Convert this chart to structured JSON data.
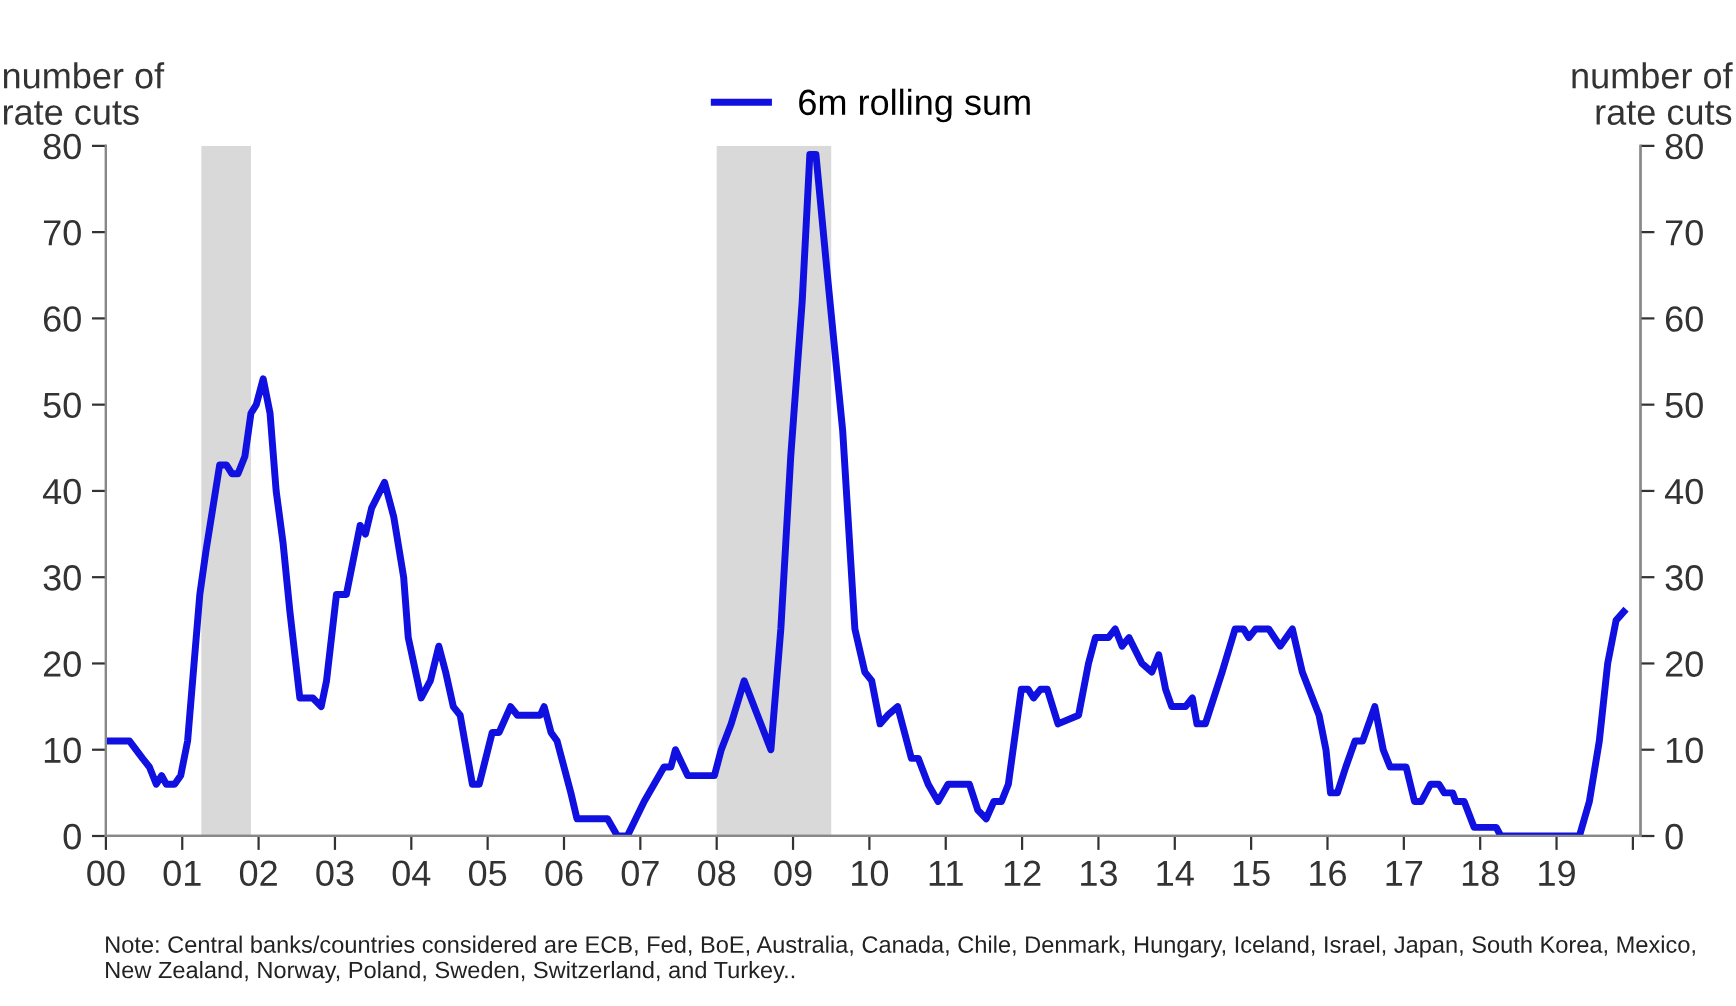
{
  "chart_data": {
    "type": "line",
    "ylabel": "number of\nrate cuts",
    "y2label": "number of\nrate cuts",
    "x": [
      2000.0,
      2000.31,
      2000.48,
      2000.57,
      2000.66,
      2000.73,
      2000.79,
      2000.9,
      2000.98,
      2001.07,
      2001.23,
      2001.31,
      2001.49,
      2001.58,
      2001.65,
      2001.73,
      2001.82,
      2001.9,
      2001.97,
      2002.06,
      2002.15,
      2002.23,
      2002.32,
      2002.41,
      2002.54,
      2002.71,
      2002.82,
      2002.89,
      2003.02,
      2003.15,
      2003.33,
      2003.4,
      2003.48,
      2003.65,
      2003.77,
      2003.9,
      2003.96,
      2004.13,
      2004.25,
      2004.36,
      2004.45,
      2004.55,
      2004.64,
      2004.8,
      2004.89,
      2005.06,
      2005.15,
      2005.3,
      2005.39,
      2005.69,
      2005.74,
      2005.83,
      2005.91,
      2006.09,
      2006.17,
      2006.57,
      2006.7,
      2006.83,
      2007.05,
      2007.31,
      2007.4,
      2007.46,
      2007.62,
      2007.97,
      2008.06,
      2008.19,
      2008.36,
      2008.49,
      2008.71,
      2008.84,
      2008.97,
      2009.12,
      2009.22,
      2009.3,
      2009.45,
      2009.65,
      2009.81,
      2009.94,
      2010.03,
      2010.14,
      2010.24,
      2010.37,
      2010.55,
      2010.64,
      2010.77,
      2010.9,
      2011.03,
      2011.31,
      2011.42,
      2011.53,
      2011.63,
      2011.73,
      2011.82,
      2011.99,
      2012.08,
      2012.15,
      2012.24,
      2012.33,
      2012.47,
      2012.74,
      2012.87,
      2012.96,
      2013.13,
      2013.22,
      2013.31,
      2013.4,
      2013.57,
      2013.7,
      2013.79,
      2013.88,
      2013.96,
      2014.14,
      2014.23,
      2014.29,
      2014.4,
      2014.62,
      2014.79,
      2014.9,
      2014.97,
      2015.06,
      2015.23,
      2015.38,
      2015.54,
      2015.67,
      2015.89,
      2015.98,
      2016.04,
      2016.13,
      2016.24,
      2016.36,
      2016.46,
      2016.62,
      2016.73,
      2016.82,
      2017.03,
      2017.14,
      2017.23,
      2017.35,
      2017.46,
      2017.53,
      2017.64,
      2017.68,
      2017.79,
      2017.92,
      2018.21,
      2018.27,
      2019.3,
      2019.43,
      2019.56,
      2019.67,
      2019.78,
      2019.88
    ],
    "series": [
      {
        "name": "6m rolling sum",
        "color": "#1010e0",
        "values": [
          11,
          11,
          9,
          8,
          6,
          7,
          6,
          6,
          7,
          11,
          28,
          33,
          43,
          43,
          42,
          42,
          44,
          49,
          50,
          53,
          49,
          40,
          34,
          26,
          16,
          16,
          15,
          18,
          28,
          28,
          36,
          35,
          38,
          41,
          37,
          30,
          23,
          16,
          18,
          22,
          19,
          15,
          14,
          6,
          6,
          12,
          12,
          15,
          14,
          14,
          15,
          12,
          11,
          5,
          2,
          2,
          0,
          0,
          4,
          8,
          8,
          10,
          7,
          7,
          10,
          13,
          18,
          15,
          10,
          24,
          44,
          62,
          79,
          79,
          65,
          47,
          24,
          19,
          18,
          13,
          14,
          15,
          9,
          9,
          6,
          4,
          6,
          6,
          3,
          2,
          4,
          4,
          6,
          17,
          17,
          16,
          17,
          17,
          13,
          14,
          20,
          23,
          23,
          24,
          22,
          23,
          20,
          19,
          21,
          17,
          15,
          15,
          16,
          13,
          13,
          19,
          24,
          24,
          23,
          24,
          24,
          22,
          24,
          19,
          14,
          10,
          5,
          5,
          8,
          11,
          11,
          15,
          10,
          8,
          8,
          4,
          4,
          6,
          6,
          5,
          5,
          4,
          4,
          1,
          1,
          0,
          0,
          4,
          11,
          20,
          25,
          26
        ]
      }
    ],
    "xlim": [
      2000,
      2020.1
    ],
    "xticks": [
      {
        "value": 2000,
        "label": "00"
      },
      {
        "value": 2001,
        "label": "01"
      },
      {
        "value": 2002,
        "label": "02"
      },
      {
        "value": 2003,
        "label": "03"
      },
      {
        "value": 2004,
        "label": "04"
      },
      {
        "value": 2005,
        "label": "05"
      },
      {
        "value": 2006,
        "label": "06"
      },
      {
        "value": 2007,
        "label": "07"
      },
      {
        "value": 2008,
        "label": "08"
      },
      {
        "value": 2009,
        "label": "09"
      },
      {
        "value": 2010,
        "label": "10"
      },
      {
        "value": 2011,
        "label": "11"
      },
      {
        "value": 2012,
        "label": "12"
      },
      {
        "value": 2013,
        "label": "13"
      },
      {
        "value": 2014,
        "label": "14"
      },
      {
        "value": 2015,
        "label": "15"
      },
      {
        "value": 2016,
        "label": "16"
      },
      {
        "value": 2017,
        "label": "17"
      },
      {
        "value": 2018,
        "label": "18"
      },
      {
        "value": 2019,
        "label": "19"
      },
      {
        "value": 2020,
        "label": null
      }
    ],
    "ylim": [
      0,
      80
    ],
    "yticks": [
      0,
      10,
      20,
      30,
      40,
      50,
      60,
      70,
      80
    ],
    "y2lim": [
      0,
      80
    ],
    "y2ticks": [
      0,
      10,
      20,
      30,
      40,
      50,
      60,
      70,
      80
    ],
    "bands": [
      {
        "axis": "x",
        "from": 2001.25,
        "to": 2001.9,
        "color": "#d9d9d9"
      },
      {
        "axis": "x",
        "from": 2008.0,
        "to": 2009.5,
        "color": "#d9d9d9"
      }
    ],
    "grid": false,
    "legend": "top",
    "marker": "none",
    "line_style": "solid",
    "annotations": [
      "Note: Central banks/countries considered are ECB, Fed, BoE, Australia, Canada, Chile, Denmark, Hungary, Iceland, Israel, Japan, South Korea, Mexico, New Zealand, Norway, Poland, Sweden, Switzerland, and Turkey.."
    ]
  }
}
